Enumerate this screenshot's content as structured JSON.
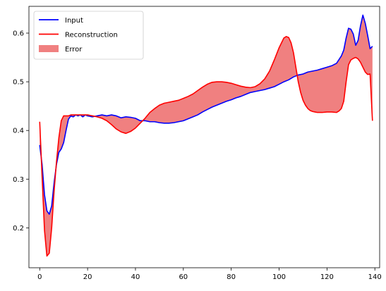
{
  "chart_data": {
    "type": "line",
    "title": "",
    "xlabel": "",
    "ylabel": "",
    "xlim": [
      -4.5,
      142
    ],
    "ylim": [
      0.118,
      0.655
    ],
    "x_ticks": [
      0,
      20,
      40,
      60,
      80,
      100,
      120,
      140
    ],
    "y_ticks": [
      0.2,
      0.3,
      0.4,
      0.5,
      0.6
    ],
    "y_tick_labels": [
      "0.2",
      "0.3",
      "0.4",
      "0.5",
      "0.6"
    ],
    "grid": false,
    "legend": {
      "location": "upper left",
      "entries": [
        {
          "label": "Input",
          "color": "#0000ff",
          "kind": "line"
        },
        {
          "label": "Reconstruction",
          "color": "#ff0000",
          "kind": "line"
        },
        {
          "label": "Error",
          "color": "#f08080",
          "kind": "fill"
        }
      ]
    },
    "series": [
      {
        "name": "Input",
        "color": "#0000ff",
        "x": [
          0,
          1,
          2,
          3,
          4,
          5,
          6,
          7,
          8,
          9,
          10,
          11,
          12,
          13,
          14,
          15,
          16,
          17,
          18,
          19,
          20,
          22,
          24,
          26,
          28,
          30,
          32,
          34,
          36,
          38,
          40,
          42,
          44,
          46,
          48,
          50,
          52,
          54,
          56,
          58,
          60,
          62,
          64,
          66,
          68,
          70,
          72,
          74,
          76,
          78,
          80,
          82,
          84,
          86,
          88,
          90,
          92,
          94,
          96,
          98,
          100,
          102,
          104,
          106,
          108,
          110,
          112,
          114,
          116,
          118,
          120,
          122,
          124,
          126,
          127,
          128,
          129,
          130,
          131,
          132,
          133,
          134,
          135,
          136,
          137,
          138,
          139
        ],
        "values": [
          0.37,
          0.33,
          0.268,
          0.235,
          0.228,
          0.245,
          0.292,
          0.33,
          0.355,
          0.362,
          0.375,
          0.4,
          0.423,
          0.43,
          0.428,
          0.432,
          0.43,
          0.432,
          0.428,
          0.432,
          0.43,
          0.428,
          0.43,
          0.432,
          0.43,
          0.432,
          0.43,
          0.426,
          0.428,
          0.427,
          0.425,
          0.42,
          0.42,
          0.418,
          0.418,
          0.416,
          0.415,
          0.415,
          0.416,
          0.418,
          0.42,
          0.424,
          0.428,
          0.432,
          0.438,
          0.443,
          0.448,
          0.452,
          0.456,
          0.46,
          0.463,
          0.467,
          0.47,
          0.474,
          0.478,
          0.48,
          0.482,
          0.484,
          0.487,
          0.49,
          0.495,
          0.5,
          0.504,
          0.51,
          0.514,
          0.516,
          0.52,
          0.522,
          0.524,
          0.527,
          0.53,
          0.533,
          0.538,
          0.553,
          0.565,
          0.59,
          0.61,
          0.608,
          0.598,
          0.575,
          0.585,
          0.615,
          0.637,
          0.62,
          0.595,
          0.568,
          0.573
        ]
      },
      {
        "name": "Reconstruction",
        "color": "#ff0000",
        "x": [
          0,
          1,
          2,
          3,
          4,
          5,
          6,
          7,
          8,
          9,
          10,
          11,
          12,
          13,
          14,
          15,
          16,
          17,
          18,
          19,
          20,
          22,
          24,
          26,
          28,
          30,
          32,
          34,
          36,
          38,
          40,
          42,
          44,
          46,
          48,
          50,
          52,
          54,
          56,
          58,
          60,
          62,
          64,
          66,
          68,
          70,
          72,
          74,
          76,
          78,
          80,
          82,
          84,
          86,
          88,
          90,
          92,
          94,
          96,
          98,
          100,
          102,
          103,
          104,
          105,
          106,
          107,
          108,
          109,
          110,
          111,
          112,
          113,
          114,
          115,
          116,
          118,
          120,
          122,
          124,
          125,
          126,
          127,
          128,
          129,
          130,
          131,
          132,
          133,
          134,
          135,
          136,
          137,
          138,
          139
        ],
        "values": [
          0.418,
          0.305,
          0.195,
          0.142,
          0.148,
          0.2,
          0.275,
          0.335,
          0.385,
          0.42,
          0.43,
          0.43,
          0.43,
          0.432,
          0.432,
          0.432,
          0.432,
          0.432,
          0.432,
          0.432,
          0.432,
          0.43,
          0.428,
          0.425,
          0.42,
          0.412,
          0.403,
          0.397,
          0.394,
          0.398,
          0.405,
          0.415,
          0.425,
          0.437,
          0.445,
          0.452,
          0.456,
          0.458,
          0.46,
          0.462,
          0.466,
          0.47,
          0.475,
          0.482,
          0.489,
          0.495,
          0.499,
          0.5,
          0.5,
          0.499,
          0.497,
          0.494,
          0.491,
          0.489,
          0.488,
          0.49,
          0.496,
          0.506,
          0.522,
          0.545,
          0.57,
          0.59,
          0.593,
          0.591,
          0.58,
          0.56,
          0.53,
          0.5,
          0.478,
          0.462,
          0.452,
          0.445,
          0.441,
          0.439,
          0.438,
          0.437,
          0.437,
          0.438,
          0.438,
          0.437,
          0.44,
          0.445,
          0.46,
          0.5,
          0.535,
          0.545,
          0.548,
          0.55,
          0.547,
          0.54,
          0.53,
          0.52,
          0.515,
          0.516,
          0.42
        ]
      }
    ]
  }
}
